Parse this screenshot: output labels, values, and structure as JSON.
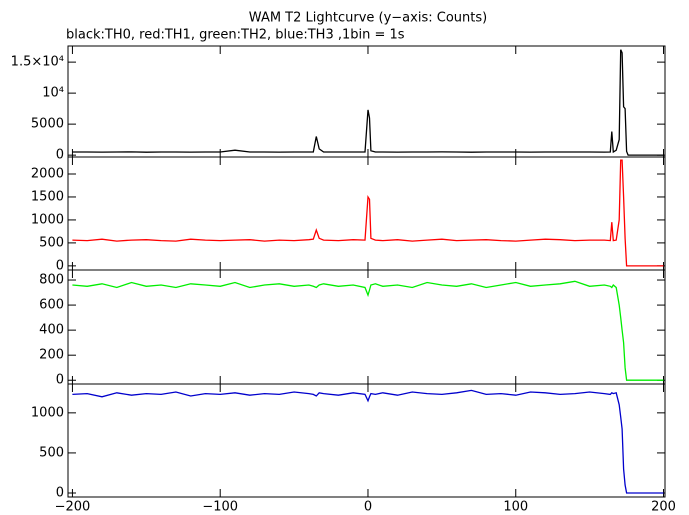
{
  "chart_data": {
    "type": "line",
    "title": "WAM T2 Lightcurve (y−axis: Counts)",
    "subtitle": "black:TH0, red:TH1, green:TH2, blue:TH3 ,1bin = 1s",
    "x": [
      -200,
      -190,
      -180,
      -170,
      -160,
      -150,
      -140,
      -130,
      -120,
      -110,
      -100,
      -90,
      -80,
      -70,
      -60,
      -50,
      -40,
      -37,
      -35,
      -33,
      -30,
      -20,
      -10,
      -2,
      0,
      1,
      2,
      5,
      10,
      20,
      30,
      40,
      50,
      60,
      70,
      80,
      90,
      100,
      110,
      120,
      130,
      140,
      150,
      160,
      164,
      165,
      166,
      168,
      170,
      171,
      172,
      173,
      174,
      175,
      176,
      178,
      180,
      190,
      200
    ],
    "xlim": [
      -203,
      201
    ],
    "xticks": [
      {
        "value": -200,
        "label": "−200"
      },
      {
        "value": -100,
        "label": "−100"
      },
      0,
      100,
      200
    ],
    "panels": [
      {
        "color": "#000000",
        "ylim": [
          -300,
          17600
        ],
        "yticks": [
          0,
          5000,
          {
            "value": 10000,
            "label": "10⁴"
          },
          {
            "value": 15000,
            "label": "1.5×10⁴"
          }
        ],
        "values": [
          500,
          510,
          490,
          500,
          520,
          480,
          500,
          510,
          490,
          500,
          500,
          800,
          500,
          500,
          490,
          510,
          500,
          500,
          3000,
          1000,
          500,
          500,
          510,
          500,
          7300,
          6000,
          700,
          500,
          500,
          490,
          510,
          500,
          520,
          500,
          480,
          500,
          510,
          500,
          490,
          500,
          510,
          500,
          500,
          490,
          500,
          3800,
          500,
          800,
          2500,
          17000,
          16500,
          7800,
          7500,
          600,
          0,
          0,
          0,
          0,
          0
        ]
      },
      {
        "color": "#ff0000",
        "ylim": [
          -90,
          2370
        ],
        "yticks": [
          0,
          500,
          1000,
          1500,
          2000
        ],
        "values": [
          560,
          550,
          580,
          540,
          560,
          570,
          550,
          540,
          580,
          560,
          550,
          560,
          570,
          540,
          560,
          550,
          570,
          580,
          780,
          600,
          560,
          550,
          570,
          560,
          1500,
          1450,
          600,
          560,
          550,
          570,
          540,
          560,
          580,
          550,
          560,
          570,
          550,
          540,
          560,
          580,
          570,
          550,
          560,
          560,
          550,
          950,
          550,
          560,
          1000,
          2300,
          2300,
          1500,
          600,
          0,
          0,
          0,
          0,
          0,
          0
        ]
      },
      {
        "color": "#00ee00",
        "ylim": [
          -30,
          880
        ],
        "yticks": [
          0,
          200,
          400,
          600,
          800
        ],
        "values": [
          760,
          750,
          770,
          740,
          780,
          750,
          760,
          740,
          770,
          760,
          750,
          780,
          740,
          760,
          770,
          750,
          760,
          750,
          740,
          760,
          770,
          750,
          760,
          740,
          680,
          720,
          760,
          770,
          750,
          760,
          740,
          780,
          760,
          750,
          770,
          740,
          760,
          780,
          750,
          760,
          770,
          790,
          750,
          760,
          750,
          740,
          760,
          740,
          600,
          500,
          400,
          300,
          100,
          0,
          0,
          0,
          0,
          0,
          0
        ]
      },
      {
        "color": "#0000cc",
        "ylim": [
          -50,
          1360
        ],
        "yticks": [
          0,
          500,
          1000
        ],
        "values": [
          1230,
          1240,
          1200,
          1250,
          1220,
          1240,
          1230,
          1260,
          1210,
          1240,
          1230,
          1250,
          1220,
          1240,
          1230,
          1260,
          1240,
          1230,
          1210,
          1250,
          1240,
          1220,
          1250,
          1230,
          1150,
          1200,
          1240,
          1230,
          1250,
          1220,
          1260,
          1240,
          1230,
          1250,
          1280,
          1230,
          1240,
          1220,
          1260,
          1250,
          1230,
          1240,
          1260,
          1240,
          1230,
          1250,
          1240,
          1250,
          1100,
          950,
          800,
          300,
          100,
          0,
          0,
          0,
          0,
          0,
          0
        ]
      }
    ]
  }
}
